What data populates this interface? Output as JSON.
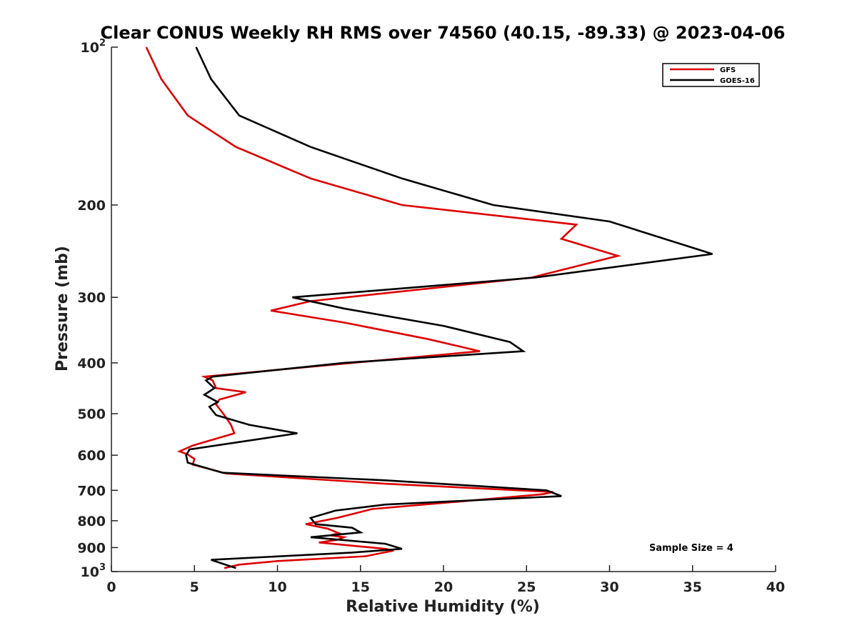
{
  "chart_data": {
    "type": "line",
    "title": "Clear CONUS Weekly RH RMS over 74560 (40.15, -89.33) @ 2023-04-06",
    "xlabel": "Relative Humidity (%)",
    "ylabel": "Pressure (mb)",
    "xlim": [
      0,
      40
    ],
    "ylim": [
      100,
      1000
    ],
    "yscale": "log",
    "y_reversed": true,
    "x_ticks": [
      "0",
      "5",
      "10",
      "15",
      "20",
      "25",
      "30",
      "35",
      "40"
    ],
    "y_ticks": [
      {
        "value": 100,
        "base": "10",
        "exp": "2"
      },
      {
        "value": 200,
        "base": "200",
        "exp": ""
      },
      {
        "value": 300,
        "base": "300",
        "exp": ""
      },
      {
        "value": 400,
        "base": "400",
        "exp": ""
      },
      {
        "value": 500,
        "base": "500",
        "exp": ""
      },
      {
        "value": 600,
        "base": "600",
        "exp": ""
      },
      {
        "value": 700,
        "base": "700",
        "exp": ""
      },
      {
        "value": 800,
        "base": "800",
        "exp": ""
      },
      {
        "value": 900,
        "base": "900",
        "exp": ""
      },
      {
        "value": 1000,
        "base": "10",
        "exp": "3"
      }
    ],
    "grid": false,
    "legend_position": "top-right",
    "annotation": "Sample Size = 4",
    "series": [
      {
        "name": "GFS",
        "color": "#dd0000",
        "points": [
          [
            2.1,
            100
          ],
          [
            3.0,
            115
          ],
          [
            4.6,
            135
          ],
          [
            7.5,
            155
          ],
          [
            12.0,
            178
          ],
          [
            17.5,
            200
          ],
          [
            28.0,
            218
          ],
          [
            27.1,
            232
          ],
          [
            30.5,
            250
          ],
          [
            25.3,
            275
          ],
          [
            12.0,
            305
          ],
          [
            9.6,
            318
          ],
          [
            14.0,
            335
          ],
          [
            19.0,
            360
          ],
          [
            22.2,
            380
          ],
          [
            14.5,
            400
          ],
          [
            5.6,
            425
          ],
          [
            6.1,
            432
          ],
          [
            6.3,
            447
          ],
          [
            8.1,
            455
          ],
          [
            6.5,
            470
          ],
          [
            6.3,
            480
          ],
          [
            6.8,
            503
          ],
          [
            7.2,
            525
          ],
          [
            7.4,
            545
          ],
          [
            4.9,
            575
          ],
          [
            4.1,
            590
          ],
          [
            4.6,
            598
          ],
          [
            5.0,
            610
          ],
          [
            4.9,
            625
          ],
          [
            6.9,
            650
          ],
          [
            16.5,
            680
          ],
          [
            26.6,
            705
          ],
          [
            26.0,
            712
          ],
          [
            21.0,
            735
          ],
          [
            15.7,
            760
          ],
          [
            13.6,
            790
          ],
          [
            11.7,
            812
          ],
          [
            13.0,
            828
          ],
          [
            13.7,
            845
          ],
          [
            13.2,
            853
          ],
          [
            14.0,
            860
          ],
          [
            13.6,
            870
          ],
          [
            12.5,
            880
          ],
          [
            16.5,
            905
          ],
          [
            17.0,
            912
          ],
          [
            15.3,
            935
          ],
          [
            10.0,
            955
          ],
          [
            7.7,
            970
          ],
          [
            6.8,
            985
          ]
        ]
      },
      {
        "name": "GOES-16",
        "color": "#000000",
        "points": [
          [
            5.1,
            100
          ],
          [
            6.0,
            115
          ],
          [
            7.7,
            135
          ],
          [
            12.0,
            155
          ],
          [
            17.5,
            178
          ],
          [
            23.0,
            200
          ],
          [
            30.0,
            215
          ],
          [
            36.2,
            248
          ],
          [
            25.5,
            275
          ],
          [
            10.9,
            300
          ],
          [
            14.0,
            315
          ],
          [
            20.0,
            340
          ],
          [
            24.0,
            365
          ],
          [
            24.8,
            380
          ],
          [
            14.0,
            400
          ],
          [
            6.1,
            425
          ],
          [
            5.7,
            432
          ],
          [
            6.2,
            447
          ],
          [
            5.6,
            460
          ],
          [
            6.4,
            475
          ],
          [
            5.9,
            485
          ],
          [
            6.3,
            503
          ],
          [
            8.3,
            525
          ],
          [
            11.2,
            545
          ],
          [
            4.7,
            585
          ],
          [
            4.5,
            600
          ],
          [
            4.6,
            620
          ],
          [
            6.7,
            648
          ],
          [
            16.5,
            670
          ],
          [
            26.2,
            700
          ],
          [
            27.1,
            718
          ],
          [
            16.5,
            745
          ],
          [
            13.5,
            765
          ],
          [
            12.0,
            790
          ],
          [
            12.3,
            812
          ],
          [
            14.5,
            825
          ],
          [
            15.0,
            842
          ],
          [
            12.0,
            860
          ],
          [
            16.5,
            885
          ],
          [
            17.5,
            905
          ],
          [
            14.5,
            920
          ],
          [
            6.0,
            950
          ],
          [
            7.5,
            985
          ]
        ]
      }
    ]
  }
}
